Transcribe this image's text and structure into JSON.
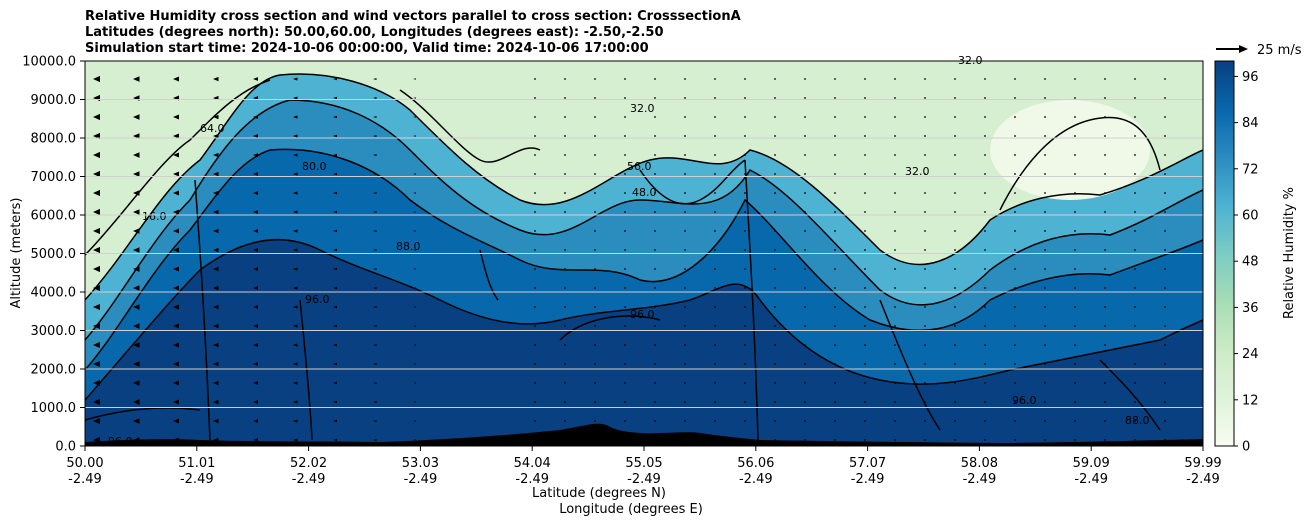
{
  "chart_data": {
    "type": "heatmap",
    "title_lines": [
      "Relative Humidity cross section and wind vectors parallel to cross section: CrosssectionA",
      "Latitudes (degrees north): 50.00,60.00, Longitudes (degrees east): -2.50,-2.50",
      "Simulation start time: 2024-10-06 00:00:00, Valid time: 2024-10-06 17:00:00"
    ],
    "xlabel_1": "Latitude (degrees N)",
    "xlabel_2": "Longitude (degrees E)",
    "ylabel": "Altitude (meters)",
    "x_ticks": [
      {
        "lat": "50.00",
        "lon": "-2.49"
      },
      {
        "lat": "51.01",
        "lon": "-2.49"
      },
      {
        "lat": "52.02",
        "lon": "-2.49"
      },
      {
        "lat": "53.03",
        "lon": "-2.49"
      },
      {
        "lat": "54.04",
        "lon": "-2.49"
      },
      {
        "lat": "55.05",
        "lon": "-2.49"
      },
      {
        "lat": "56.06",
        "lon": "-2.49"
      },
      {
        "lat": "57.07",
        "lon": "-2.49"
      },
      {
        "lat": "58.08",
        "lon": "-2.49"
      },
      {
        "lat": "59.09",
        "lon": "-2.49"
      },
      {
        "lat": "59.99",
        "lon": "-2.49"
      }
    ],
    "y_ticks": [
      "0.0",
      "1000.0",
      "2000.0",
      "3000.0",
      "4000.0",
      "5000.0",
      "6000.0",
      "7000.0",
      "8000.0",
      "9000.0",
      "10000.0"
    ],
    "ylim": [
      0,
      10000
    ],
    "horizontal_grid": true,
    "colorbar": {
      "label": "Relative Humidity %",
      "ticks": [
        "0",
        "12",
        "24",
        "36",
        "48",
        "60",
        "72",
        "84",
        "96"
      ],
      "range": [
        0,
        100
      ],
      "low_color": "#f7fcf0",
      "high_color": "#08478c"
    },
    "wind_reference": "25 m/s",
    "contour_labels": [
      "16.0",
      "32.0",
      "48.0",
      "56.0",
      "64.0",
      "80.0",
      "88.0",
      "96.0"
    ],
    "colors": {
      "colormap": [
        "#f7fcf0",
        "#e0f3db",
        "#ccebc5",
        "#a8ddb5",
        "#7bccc4",
        "#4eb3d3",
        "#2b8cbe",
        "#0868ac",
        "#084081"
      ],
      "terrain": "#000000",
      "contour": "#000000"
    }
  }
}
